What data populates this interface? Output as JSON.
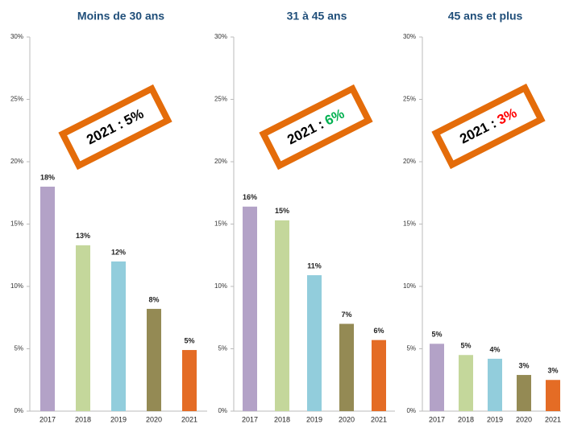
{
  "chart_data": [
    {
      "type": "bar",
      "title": "Moins de 30 ans",
      "categories": [
        "2017",
        "2018",
        "2019",
        "2020",
        "2021"
      ],
      "values": [
        18.0,
        13.3,
        12.0,
        8.2,
        4.9
      ],
      "value_labels": [
        "18%",
        "13%",
        "12%",
        "8%",
        "5%"
      ],
      "colors": [
        "#b3a2c7",
        "#c4d79b",
        "#92cddc",
        "#948a54",
        "#e46c25"
      ],
      "ylim": [
        0,
        30
      ],
      "yticks": [
        {
          "value": 0,
          "label": "0%"
        },
        {
          "value": 5,
          "label": "5%"
        },
        {
          "value": 10,
          "label": "10%"
        },
        {
          "value": 15,
          "label": "15%"
        },
        {
          "value": 20,
          "label": "20%"
        },
        {
          "value": 25,
          "label": "25%"
        },
        {
          "value": 30,
          "label": "30%"
        }
      ],
      "annotation": {
        "prefix": "2021 :",
        "value": "5%",
        "value_color": "#000000"
      }
    },
    {
      "type": "bar",
      "title": "31 à 45 ans",
      "categories": [
        "2017",
        "2018",
        "2019",
        "2020",
        "2021"
      ],
      "values": [
        16.4,
        15.3,
        10.9,
        7.0,
        5.7
      ],
      "value_labels": [
        "16%",
        "15%",
        "11%",
        "7%",
        "6%"
      ],
      "colors": [
        "#b3a2c7",
        "#c4d79b",
        "#92cddc",
        "#948a54",
        "#e46c25"
      ],
      "ylim": [
        0,
        30
      ],
      "yticks": [
        {
          "value": 0,
          "label": "0%"
        },
        {
          "value": 5,
          "label": "5%"
        },
        {
          "value": 10,
          "label": "10%"
        },
        {
          "value": 15,
          "label": "15%"
        },
        {
          "value": 20,
          "label": "20%"
        },
        {
          "value": 25,
          "label": "25%"
        },
        {
          "value": 30,
          "label": "30%"
        }
      ],
      "annotation": {
        "prefix": "2021 :",
        "value": "6%",
        "value_color": "#00b050"
      }
    },
    {
      "type": "bar",
      "title": "45 ans et plus",
      "categories": [
        "2017",
        "2018",
        "2019",
        "2020",
        "2021"
      ],
      "values": [
        5.4,
        4.5,
        4.2,
        2.9,
        2.5
      ],
      "value_labels": [
        "5%",
        "5%",
        "4%",
        "3%",
        "3%"
      ],
      "colors": [
        "#b3a2c7",
        "#c4d79b",
        "#92cddc",
        "#948a54",
        "#e46c25"
      ],
      "ylim": [
        0,
        30
      ],
      "yticks": [
        {
          "value": 0,
          "label": "0%"
        },
        {
          "value": 5,
          "label": "5%"
        },
        {
          "value": 10,
          "label": "10%"
        },
        {
          "value": 15,
          "label": "15%"
        },
        {
          "value": 20,
          "label": "20%"
        },
        {
          "value": 25,
          "label": "25%"
        },
        {
          "value": 30,
          "label": "30%"
        }
      ],
      "annotation": {
        "prefix": "2021 :",
        "value": "3%",
        "value_color": "#ff0000"
      }
    }
  ]
}
